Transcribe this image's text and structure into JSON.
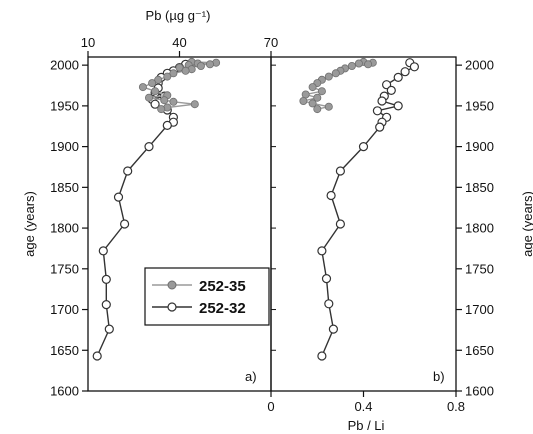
{
  "chart_data": [
    {
      "panel": "a)",
      "type": "line",
      "xlabel": "Pb (µg g⁻¹)",
      "xlabel_top": "Pb (µg g⁻¹)",
      "xlim": [
        10,
        70
      ],
      "xticks_top": [
        "10",
        "40",
        "70"
      ],
      "ylabel": "age (years)",
      "ylim": [
        1600,
        2010
      ],
      "yticks": [
        "1600",
        "1650",
        "1700",
        "1750",
        "1800",
        "1850",
        "1900",
        "1950",
        "2000"
      ],
      "series": [
        {
          "name": "252-35",
          "color": "#9a9a9a",
          "marker": "filled-circle",
          "points": [
            [
              44,
              2004
            ],
            [
              52,
              2003
            ],
            [
              46,
              2002
            ],
            [
              50,
              2001
            ],
            [
              43,
              2000
            ],
            [
              47,
              1999
            ],
            [
              40,
              1997
            ],
            [
              44,
              1995
            ],
            [
              42,
              1993
            ],
            [
              38,
              1990
            ],
            [
              36,
              1986
            ],
            [
              33,
              1982
            ],
            [
              31,
              1978
            ],
            [
              28,
              1973
            ],
            [
              32,
              1968
            ],
            [
              36,
              1963
            ],
            [
              30,
              1960
            ],
            [
              35,
              1957
            ],
            [
              38,
              1955
            ],
            [
              45,
              1952
            ],
            [
              36,
              1948
            ],
            [
              34,
              1946
            ]
          ]
        },
        {
          "name": "252-32",
          "color": "#333333",
          "marker": "open-circle",
          "points": [
            [
              42,
              2001
            ],
            [
              40,
              1997
            ],
            [
              38,
              1993
            ],
            [
              36,
              1990
            ],
            [
              34,
              1985
            ],
            [
              33,
              1978
            ],
            [
              33,
              1972
            ],
            [
              32,
              1966
            ],
            [
              35,
              1962
            ],
            [
              31,
              1958
            ],
            [
              32,
              1952
            ],
            [
              36,
              1945
            ],
            [
              38,
              1936
            ],
            [
              38,
              1930
            ],
            [
              36,
              1926
            ],
            [
              30,
              1900
            ],
            [
              23,
              1870
            ],
            [
              20,
              1838
            ],
            [
              22,
              1805
            ],
            [
              15,
              1772
            ],
            [
              16,
              1737
            ],
            [
              16,
              1706
            ],
            [
              17,
              1676
            ],
            [
              13,
              1643
            ]
          ]
        }
      ],
      "legend": {
        "entries": [
          "252-35",
          "252-32"
        ],
        "placement": "bottom-left"
      }
    },
    {
      "panel": "b)",
      "type": "line",
      "xlabel": "Pb / Li",
      "xlim": [
        0,
        0.8
      ],
      "xticks": [
        "0",
        "0.4",
        "0.8"
      ],
      "ylabel": "age (years)",
      "ylim": [
        1600,
        2010
      ],
      "yticks": [
        "1600",
        "1650",
        "1700",
        "1750",
        "1800",
        "1850",
        "1900",
        "1950",
        "2000"
      ],
      "series": [
        {
          "name": "252-35",
          "color": "#9a9a9a",
          "marker": "filled-circle",
          "points": [
            [
              0.4,
              2004
            ],
            [
              0.44,
              2003
            ],
            [
              0.38,
              2002
            ],
            [
              0.42,
              2001
            ],
            [
              0.35,
              1999
            ],
            [
              0.32,
              1996
            ],
            [
              0.3,
              1993
            ],
            [
              0.28,
              1990
            ],
            [
              0.25,
              1986
            ],
            [
              0.22,
              1982
            ],
            [
              0.2,
              1978
            ],
            [
              0.18,
              1973
            ],
            [
              0.22,
              1968
            ],
            [
              0.15,
              1964
            ],
            [
              0.2,
              1960
            ],
            [
              0.14,
              1956
            ],
            [
              0.18,
              1953
            ],
            [
              0.25,
              1949
            ],
            [
              0.2,
              1946
            ]
          ]
        },
        {
          "name": "252-32",
          "color": "#333333",
          "marker": "open-circle",
          "points": [
            [
              0.6,
              2003
            ],
            [
              0.62,
              1998
            ],
            [
              0.58,
              1992
            ],
            [
              0.55,
              1985
            ],
            [
              0.5,
              1976
            ],
            [
              0.52,
              1969
            ],
            [
              0.49,
              1962
            ],
            [
              0.48,
              1956
            ],
            [
              0.55,
              1950
            ],
            [
              0.46,
              1944
            ],
            [
              0.5,
              1936
            ],
            [
              0.48,
              1930
            ],
            [
              0.47,
              1924
            ],
            [
              0.4,
              1900
            ],
            [
              0.3,
              1870
            ],
            [
              0.26,
              1840
            ],
            [
              0.3,
              1805
            ],
            [
              0.22,
              1772
            ],
            [
              0.24,
              1738
            ],
            [
              0.25,
              1707
            ],
            [
              0.27,
              1676
            ],
            [
              0.22,
              1643
            ]
          ]
        }
      ]
    }
  ]
}
